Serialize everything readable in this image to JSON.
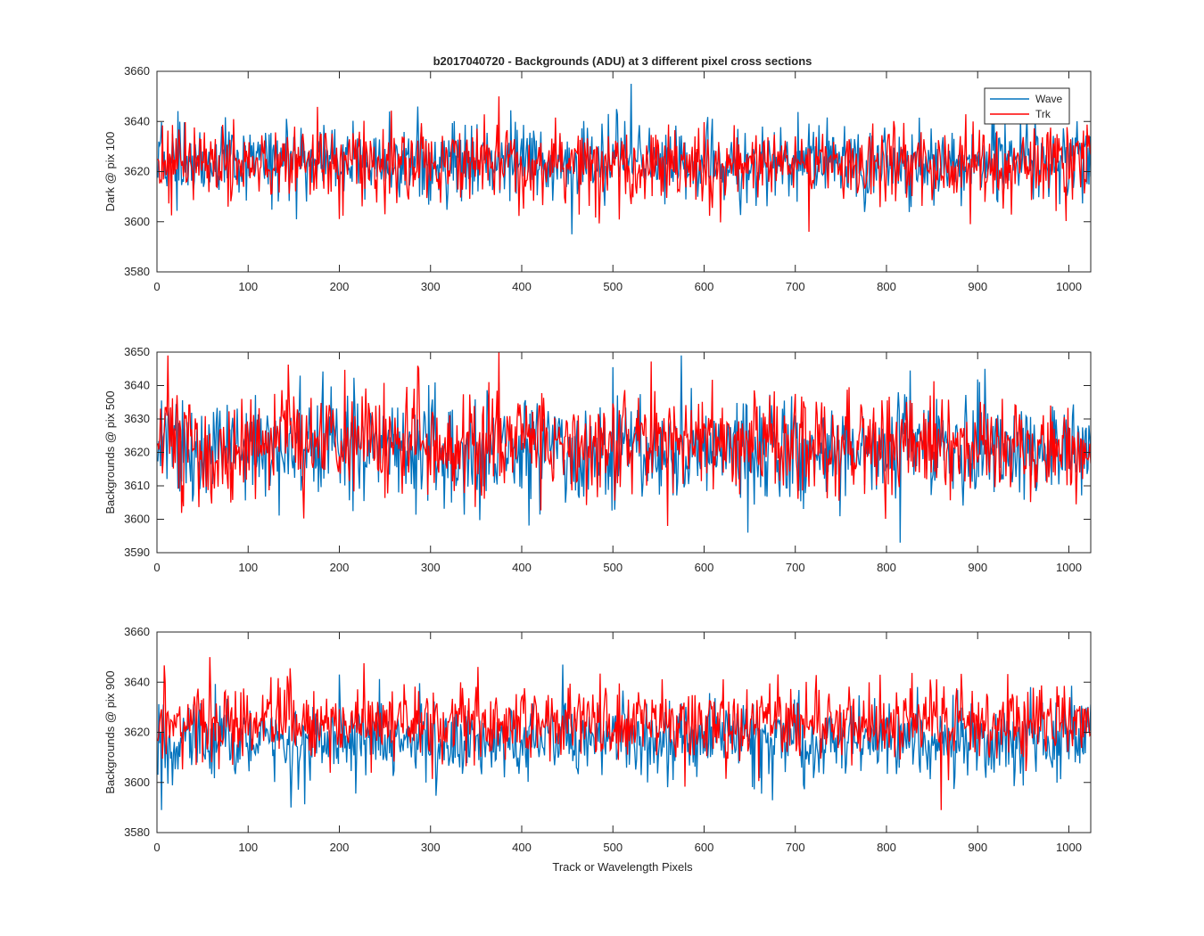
{
  "figure": {
    "title": "b2017040720 - Backgrounds (ADU) at 3 different pixel cross sections",
    "xlabel": "Track or Wavelength Pixels"
  },
  "legend": {
    "entries": [
      "Wave",
      "Trk"
    ],
    "location": "top-right of first subplot"
  },
  "colors": {
    "wave": "#0072BD",
    "trk": "#FF0000",
    "axes": "#262626",
    "background": "#FFFFFF"
  },
  "chart_data": [
    {
      "type": "line",
      "title": "b2017040720 - Backgrounds (ADU) at 3 different pixel cross sections",
      "ylabel": "Dark @ pix 100",
      "xlabel": "",
      "xlim": [
        0,
        1024
      ],
      "ylim": [
        3580,
        3660
      ],
      "xticks": [
        0,
        100,
        200,
        300,
        400,
        500,
        600,
        700,
        800,
        900,
        1000
      ],
      "yticks": [
        3580,
        3600,
        3620,
        3640,
        3660
      ],
      "grid": false,
      "legend": "top-right",
      "series": [
        {
          "name": "Wave",
          "x_range": [
            1,
            1024
          ],
          "mean": 3624,
          "std": 7.5,
          "min": 3595,
          "max": 3655,
          "peaks": [
            [
              455,
              3595
            ],
            [
              520,
              3655
            ],
            [
              153,
              3601
            ]
          ]
        },
        {
          "name": "Trk",
          "x_range": [
            1,
            1024
          ],
          "mean": 3623,
          "std": 7.5,
          "min": 3596,
          "max": 3650,
          "peaks": [
            [
              375,
              3650
            ],
            [
              715,
              3596
            ]
          ]
        }
      ]
    },
    {
      "type": "line",
      "title": "",
      "ylabel": "Backgrounds @ pix 500",
      "xlabel": "",
      "xlim": [
        0,
        1024
      ],
      "ylim": [
        3590,
        3650
      ],
      "xticks": [
        0,
        100,
        200,
        300,
        400,
        500,
        600,
        700,
        800,
        900,
        1000
      ],
      "yticks": [
        3590,
        3600,
        3610,
        3620,
        3630,
        3640,
        3650
      ],
      "grid": false,
      "series": [
        {
          "name": "Wave",
          "x_range": [
            1,
            1024
          ],
          "mean": 3621,
          "std": 8,
          "min": 3593,
          "max": 3649,
          "peaks": [
            [
              815,
              3593
            ],
            [
              648,
              3596
            ],
            [
              575,
              3649
            ]
          ]
        },
        {
          "name": "Trk",
          "x_range": [
            1,
            1024
          ],
          "mean": 3623,
          "std": 8,
          "min": 3598,
          "max": 3650,
          "peaks": [
            [
              375,
              3650
            ],
            [
              12,
              3649
            ],
            [
              560,
              3598
            ]
          ]
        }
      ]
    },
    {
      "type": "line",
      "title": "",
      "ylabel": "Backgrounds @ pix 900",
      "xlabel": "Track or Wavelength Pixels",
      "xlim": [
        0,
        1024
      ],
      "ylim": [
        3580,
        3660
      ],
      "xticks": [
        0,
        100,
        200,
        300,
        400,
        500,
        600,
        700,
        800,
        900,
        1000
      ],
      "yticks": [
        3580,
        3600,
        3620,
        3640,
        3660
      ],
      "grid": false,
      "series": [
        {
          "name": "Wave",
          "x_range": [
            1,
            1024
          ],
          "mean": 3617,
          "std": 8,
          "min": 3589,
          "max": 3647,
          "peaks": [
            [
              5,
              3589
            ],
            [
              147,
              3590
            ],
            [
              445,
              3647
            ]
          ]
        },
        {
          "name": "Trk",
          "x_range": [
            1,
            1024
          ],
          "mean": 3624,
          "std": 7.5,
          "min": 3589,
          "max": 3650,
          "peaks": [
            [
              58,
              3650
            ],
            [
              860,
              3589
            ]
          ]
        }
      ]
    }
  ]
}
